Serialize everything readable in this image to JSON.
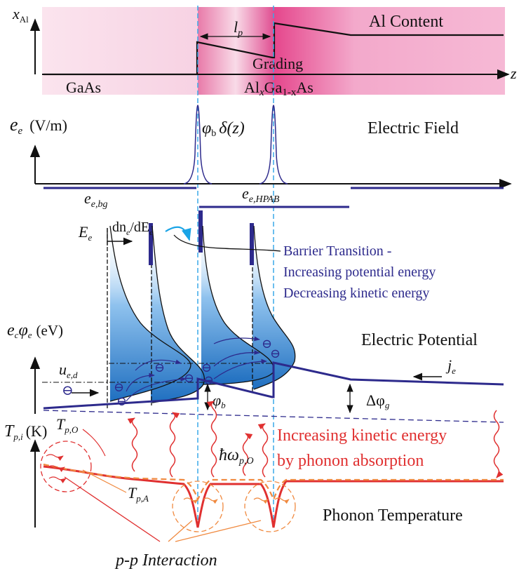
{
  "al_content": {
    "y_axis": "x",
    "y_axis_sub": "Al",
    "z_axis": "z",
    "length_label": "l",
    "length_sub": "p",
    "grading": "Grading",
    "al_content": "Al Content",
    "gaas": "GaAs",
    "algaas_al": "Al",
    "algaas_x": "x",
    "algaas_ga": "Ga",
    "algaas_1mx": "1-x",
    "algaas_as": "As"
  },
  "electric_field": {
    "y_axis": "e",
    "y_axis_sub": "e",
    "unit": "(V/m)",
    "delta_phi": "φ",
    "delta_phi_sub": "b",
    "delta_tail": "δ(z)",
    "title": "Electric Field",
    "bg_label": "e",
    "bg_sub": "e,bg",
    "hpab_label": "e",
    "hpab_sub": "e,HPAB"
  },
  "distribution": {
    "ee": "E",
    "ee_sub": "e",
    "dn_part1": "dn",
    "dn_sub1": "e",
    "dn_part2": "/dE",
    "dn_sub2": "e",
    "barrier_lines": [
      "Barrier Transition -",
      "Increasing potential energy",
      "Decreasing kinetic energy"
    ]
  },
  "potential": {
    "y_axis": "e",
    "y_sub1": "c",
    "y_phi": "φ",
    "y_sub2": "e",
    "unit": "(eV)",
    "title": "Electric Potential",
    "drift": "u",
    "drift_sub": "e,d",
    "current": "j",
    "current_sub": "e",
    "phi_b": "φ",
    "phi_b_sub": "b",
    "delta_phi_g": "Δφ",
    "delta_phi_g_sub": "g",
    "electron_symbol": "⊖"
  },
  "phonon": {
    "y_axis": "T",
    "y_sub": "p,i",
    "unit": "(K)",
    "t_optical": "T",
    "t_optical_sub": "p,O",
    "t_acoustic": "T",
    "t_acoustic_sub": "p,A",
    "hbar_omega": "ħω",
    "hbar_omega_sub": "p,O",
    "absorption_lines": [
      "Increasing kinetic energy",
      "by phonon absorption"
    ],
    "title": "Phonon Temperature",
    "interaction": "p-p Interaction"
  },
  "colors": {
    "axis": "#111111",
    "navy": "#2d2a8c",
    "phonon_red": "#e03030",
    "phonon_orange": "#f08a40",
    "region_pink": "#f7c6dc",
    "region_magenta": "#e8559a",
    "dist_blue": "#1f6fc0",
    "divider_cyan": "#3aa9e8"
  }
}
